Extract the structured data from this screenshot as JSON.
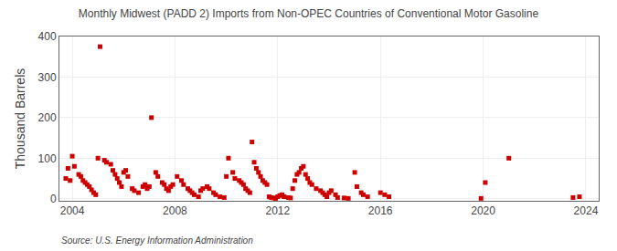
{
  "chart_data": {
    "type": "scatter",
    "title": "Monthly Midwest (PADD 2) Imports from Non-OPEC Countries of Conventional Motor Gasoline",
    "ylabel": "Thousand Barrels",
    "annotations": [
      "Source: U.S. Energy Information Administration"
    ],
    "color": "#cc0000",
    "marker": "square",
    "grid": true,
    "xlim": [
      2003.5,
      2024.5
    ],
    "ylim": [
      -5,
      400
    ],
    "xticks": [
      2004,
      2008,
      2012,
      2016,
      2020,
      2024
    ],
    "yticks": [
      0,
      100,
      200,
      300,
      400
    ],
    "x": [
      2003.75,
      2003.833,
      2003.917,
      2004.0,
      2004.083,
      2004.25,
      2004.333,
      2004.417,
      2004.5,
      2004.583,
      2004.667,
      2004.75,
      2004.833,
      2004.917,
      2005.0,
      2005.083,
      2005.25,
      2005.333,
      2005.5,
      2005.583,
      2005.667,
      2005.75,
      2005.833,
      2005.917,
      2006.0,
      2006.083,
      2006.167,
      2006.333,
      2006.417,
      2006.583,
      2006.75,
      2006.833,
      2006.917,
      2007.0,
      2007.083,
      2007.25,
      2007.333,
      2007.5,
      2007.583,
      2007.667,
      2007.75,
      2007.833,
      2007.917,
      2008.083,
      2008.25,
      2008.333,
      2008.5,
      2008.583,
      2008.667,
      2008.75,
      2008.917,
      2009.0,
      2009.083,
      2009.25,
      2009.333,
      2009.5,
      2009.583,
      2009.75,
      2009.917,
      2010.0,
      2010.083,
      2010.25,
      2010.333,
      2010.5,
      2010.583,
      2010.667,
      2010.75,
      2010.833,
      2010.917,
      2011.0,
      2011.083,
      2011.167,
      2011.25,
      2011.333,
      2011.417,
      2011.5,
      2011.583,
      2011.667,
      2011.75,
      2011.833,
      2011.917,
      2012.0,
      2012.083,
      2012.167,
      2012.25,
      2012.417,
      2012.5,
      2012.583,
      2012.667,
      2012.75,
      2012.833,
      2012.917,
      2013.0,
      2013.083,
      2013.167,
      2013.25,
      2013.333,
      2013.5,
      2013.667,
      2013.75,
      2013.833,
      2013.917,
      2014.0,
      2014.083,
      2014.25,
      2014.333,
      2014.583,
      2014.75,
      2015.0,
      2015.083,
      2015.25,
      2015.333,
      2015.5,
      2016.0,
      2016.167,
      2016.333,
      2019.917,
      2020.083,
      2021.0,
      2023.5,
      2023.75
    ],
    "values": [
      50,
      75,
      45,
      105,
      80,
      60,
      55,
      45,
      40,
      35,
      30,
      22,
      15,
      10,
      100,
      375,
      95,
      90,
      85,
      70,
      60,
      50,
      40,
      30,
      65,
      70,
      55,
      25,
      20,
      15,
      30,
      35,
      25,
      30,
      200,
      65,
      55,
      40,
      35,
      25,
      20,
      30,
      35,
      55,
      45,
      35,
      25,
      20,
      15,
      10,
      5,
      20,
      25,
      30,
      25,
      15,
      10,
      5,
      3,
      55,
      100,
      65,
      50,
      45,
      40,
      35,
      25,
      20,
      15,
      140,
      90,
      75,
      65,
      55,
      45,
      40,
      35,
      5,
      3,
      2,
      1,
      5,
      8,
      10,
      5,
      3,
      2,
      25,
      45,
      60,
      65,
      75,
      80,
      60,
      50,
      40,
      35,
      25,
      20,
      15,
      10,
      5,
      15,
      20,
      10,
      3,
      2,
      1,
      65,
      30,
      15,
      10,
      5,
      15,
      10,
      5,
      1,
      40,
      100,
      3,
      5
    ]
  }
}
